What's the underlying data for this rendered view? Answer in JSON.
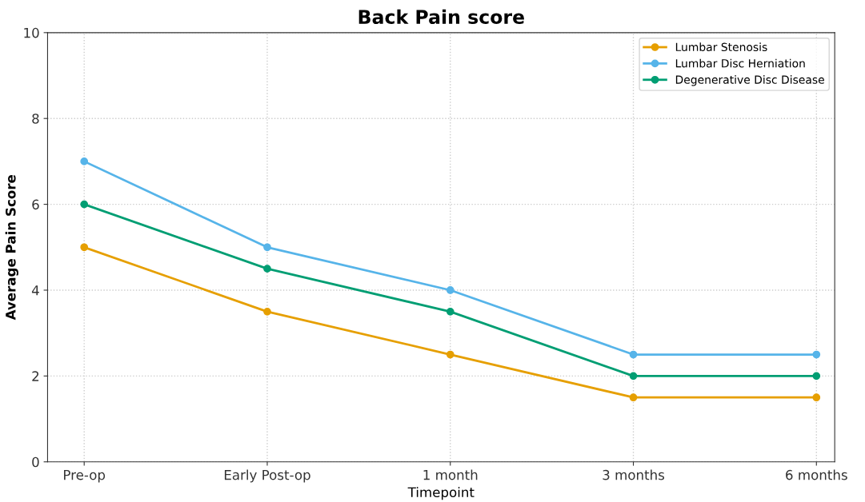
{
  "chart_data": {
    "type": "line",
    "title": "Back Pain score",
    "xlabel": "Timepoint",
    "ylabel": "Average Pain Score",
    "categories": [
      "Pre-op",
      "Early Post-op",
      "1 month",
      "3 months",
      "6 months"
    ],
    "series": [
      {
        "name": "Lumbar Stenosis",
        "color": "#e69f00",
        "values": [
          5,
          3.5,
          2.5,
          1.5,
          1.5
        ]
      },
      {
        "name": "Lumbar Disc Herniation",
        "color": "#56b4e9",
        "values": [
          7,
          5,
          4,
          2.5,
          2.5
        ]
      },
      {
        "name": "Degenerative Disc Disease",
        "color": "#009e73",
        "values": [
          6,
          4.5,
          3.5,
          2,
          2
        ]
      }
    ],
    "ylim": [
      0,
      10
    ],
    "yticks": [
      0,
      2,
      4,
      6,
      8,
      10
    ],
    "grid": true,
    "legend": "top right",
    "marker": "circle",
    "line_style": "solid"
  }
}
